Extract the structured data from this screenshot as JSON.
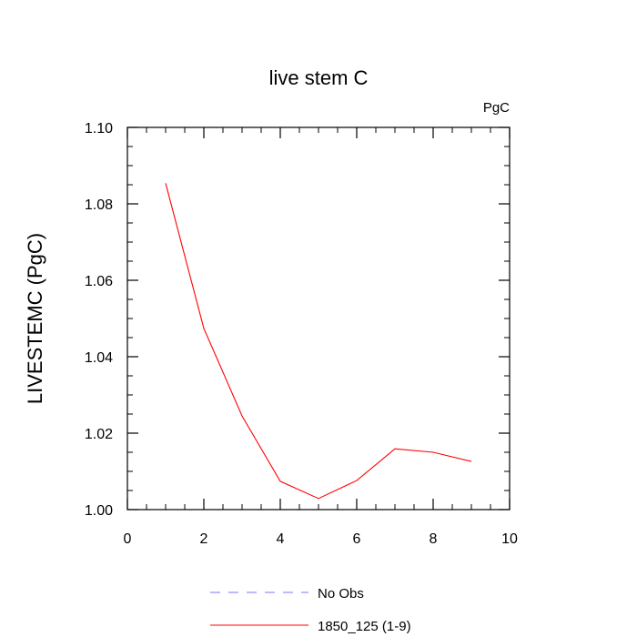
{
  "chart_data": {
    "type": "line",
    "title": "live stem C",
    "units_label": "PgC",
    "xlabel": "",
    "ylabel": "LIVESTEMC  (PgC)",
    "xlim": [
      0,
      10
    ],
    "ylim": [
      1.0,
      1.1
    ],
    "x_ticks": [
      "0",
      "2",
      "4",
      "6",
      "8",
      "10"
    ],
    "y_ticks": [
      "1.00",
      "1.02",
      "1.04",
      "1.06",
      "1.08",
      "1.10"
    ],
    "grid": false,
    "legend_position": "bottom",
    "series": [
      {
        "name": "No Obs",
        "color": "#7777ff",
        "dash": "dashed",
        "x": [],
        "y": []
      },
      {
        "name": "1850_125 (1-9)",
        "color": "#ff0000",
        "dash": "solid",
        "x": [
          1,
          2,
          3,
          4,
          5,
          6,
          7,
          8,
          9
        ],
        "y": [
          1.0854,
          1.0474,
          1.0245,
          1.0074,
          1.0029,
          1.0076,
          1.0159,
          1.015,
          1.0126
        ]
      }
    ]
  }
}
